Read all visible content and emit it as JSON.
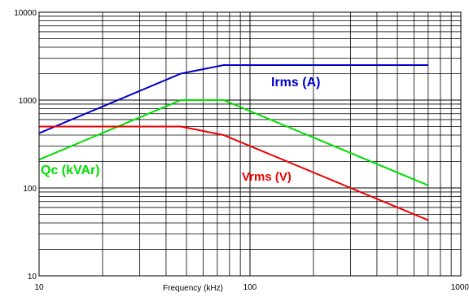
{
  "chart_data": {
    "type": "line",
    "title": "",
    "xlabel": "Frequency (kHz)",
    "ylabel": "",
    "x_scale": "log",
    "y_scale": "log",
    "xlim": [
      10,
      1000
    ],
    "ylim": [
      10,
      10000
    ],
    "x_ticks": [
      "10",
      "100",
      "1000"
    ],
    "y_ticks": [
      "10000",
      "1000",
      "100",
      "10"
    ],
    "grid": true,
    "legend": "none",
    "series": [
      {
        "name": "Irms (A)",
        "color": "#0000c8",
        "x": [
          10,
          47,
          75,
          700
        ],
        "y": [
          420,
          2000,
          2500,
          2500
        ]
      },
      {
        "name": "Qc (kVAr)",
        "color": "#00e000",
        "x": [
          10,
          47,
          75,
          700
        ],
        "y": [
          210,
          1000,
          1000,
          107
        ]
      },
      {
        "name": "Vrms (V)",
        "color": "#ee0000",
        "x": [
          10,
          47,
          75,
          700
        ],
        "y": [
          500,
          500,
          400,
          43
        ]
      }
    ]
  }
}
